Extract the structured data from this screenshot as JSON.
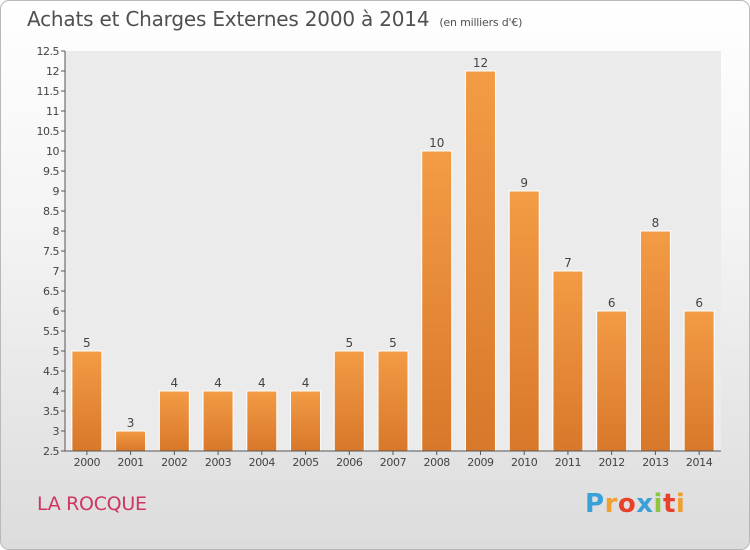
{
  "header": {
    "title": "Achats et Charges Externes 2000 à 2014",
    "subtitle": "(en milliers d'€)"
  },
  "footer": {
    "town": "LA ROCQUE",
    "logo_letters": [
      "P",
      "r",
      "o",
      "x",
      "i",
      "t",
      "i"
    ],
    "logo_colors": [
      "#3aa0d8",
      "#f0a030",
      "#e8402a",
      "#3aa0d8",
      "#8cc63f",
      "#e8402a",
      "#f0a030"
    ]
  },
  "chart_data": {
    "type": "bar",
    "title": "Achats et Charges Externes 2000 à 2014",
    "categories": [
      "2000",
      "2001",
      "2002",
      "2003",
      "2004",
      "2005",
      "2006",
      "2007",
      "2008",
      "2009",
      "2010",
      "2011",
      "2012",
      "2013",
      "2014"
    ],
    "values": [
      5,
      3,
      4,
      4,
      4,
      4,
      5,
      5,
      10,
      12,
      9,
      7,
      6,
      8,
      6
    ],
    "data_labels": [
      "5",
      "3",
      "4",
      "4",
      "4",
      "4",
      "5",
      "5",
      "10",
      "12",
      "9",
      "7",
      "6",
      "8",
      "6"
    ],
    "ylim": [
      2.5,
      12.5
    ],
    "yticks": [
      "2.5",
      "3",
      "3.5",
      "4",
      "4.5",
      "5",
      "5.5",
      "6",
      "6.5",
      "7",
      "7.5",
      "8",
      "8.5",
      "9",
      "9.5",
      "10",
      "10.5",
      "11",
      "11.5",
      "12",
      "12.5"
    ],
    "xlabel": "",
    "ylabel": "",
    "grid": false,
    "bar_color": "#f39b45",
    "bar_color_dark": "#d8782a"
  }
}
